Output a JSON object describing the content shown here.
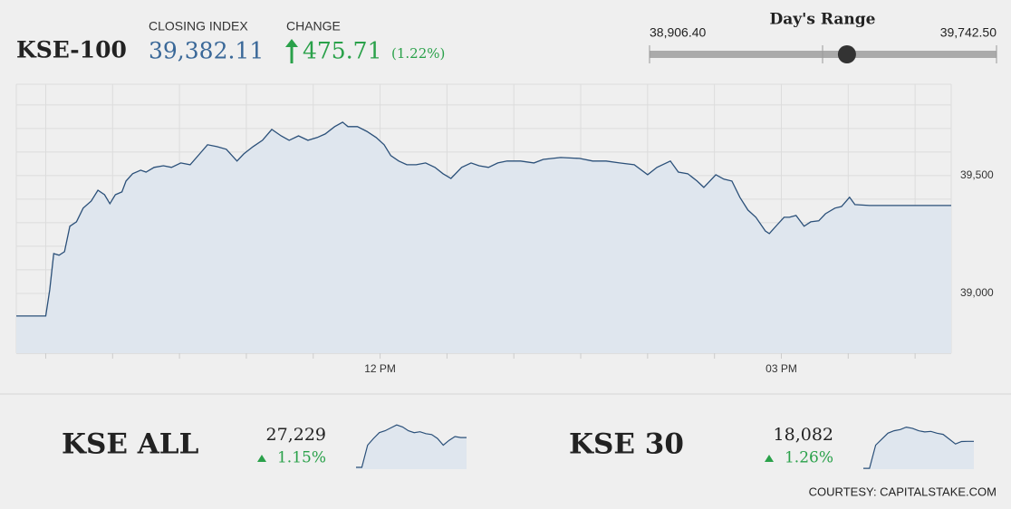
{
  "header": {
    "index_name": "KSE-100",
    "closing_label": "CLOSING INDEX",
    "closing_index": {
      "value": 39382.11,
      "label": "39,382.11"
    },
    "change_label": "CHANGE",
    "change": {
      "value": 475.71,
      "label": "475.71"
    },
    "change_pct": {
      "value": 1.22,
      "label": "(1.22%)"
    }
  },
  "range": {
    "title": "Day's Range",
    "low": {
      "value": 38906.4,
      "label": "38,906.40"
    },
    "high": {
      "value": 39742.5,
      "label": "39,742.50"
    }
  },
  "chart_data": [
    {
      "type": "area",
      "color": "#2b5079",
      "fill": "#dfe6ee",
      "x": [
        9.28,
        9.5,
        9.53,
        9.56,
        9.6,
        9.64,
        9.68,
        9.73,
        9.78,
        9.84,
        9.89,
        9.94,
        9.98,
        10.02,
        10.07,
        10.1,
        10.15,
        10.21,
        10.25,
        10.31,
        10.38,
        10.44,
        10.51,
        10.58,
        10.65,
        10.71,
        10.78,
        10.85,
        10.93,
        10.98,
        11.05,
        11.12,
        11.19,
        11.26,
        11.32,
        11.39,
        11.46,
        11.53,
        11.59,
        11.66,
        11.72,
        11.76,
        11.83,
        11.9,
        11.97,
        12.03,
        12.08,
        12.14,
        12.2,
        12.27,
        12.34,
        12.41,
        12.47,
        12.53,
        12.61,
        12.68,
        12.74,
        12.81,
        12.88,
        12.95,
        13.05,
        13.15,
        13.22,
        13.35,
        13.49,
        13.59,
        13.69,
        13.79,
        13.9,
        14.0,
        14.07,
        14.17,
        14.23,
        14.3,
        14.37,
        14.42,
        14.51,
        14.57,
        14.63,
        14.69,
        14.75,
        14.81,
        14.88,
        14.91,
        14.97,
        15.02,
        15.06,
        15.11,
        15.17,
        15.22,
        15.28,
        15.33,
        15.4,
        15.45,
        15.51,
        15.55,
        15.66,
        16.27
      ],
      "values": [
        38904,
        38904,
        39015,
        39169,
        39162,
        39177,
        39285,
        39304,
        39362,
        39392,
        39438,
        39419,
        39381,
        39419,
        39431,
        39477,
        39508,
        39523,
        39515,
        39535,
        39542,
        39535,
        39554,
        39546,
        39592,
        39631,
        39623,
        39612,
        39562,
        39592,
        39623,
        39650,
        39696,
        39669,
        39650,
        39669,
        39650,
        39662,
        39677,
        39708,
        39727,
        39708,
        39708,
        39688,
        39662,
        39631,
        39585,
        39562,
        39546,
        39546,
        39554,
        39535,
        39508,
        39488,
        39535,
        39554,
        39542,
        39535,
        39554,
        39562,
        39562,
        39554,
        39569,
        39577,
        39573,
        39562,
        39562,
        39554,
        39546,
        39504,
        39535,
        39562,
        39515,
        39508,
        39477,
        39450,
        39504,
        39485,
        39477,
        39408,
        39354,
        39323,
        39265,
        39254,
        39292,
        39323,
        39323,
        39331,
        39285,
        39304,
        39308,
        39338,
        39362,
        39369,
        39408,
        39377,
        39373,
        39373
      ],
      "xlim": [
        9.28,
        16.27
      ],
      "ylim": [
        38746,
        39888
      ],
      "xticks": [
        {
          "value": 12,
          "label": "12 PM"
        },
        {
          "value": 15,
          "label": "03 PM"
        }
      ],
      "xticks_minor": [
        9.5,
        10,
        10.5,
        11,
        11.5,
        12,
        12.5,
        13,
        13.5,
        14,
        14.5,
        15,
        15.5,
        16
      ],
      "yticks": [
        {
          "value": 39000,
          "label": "39,000"
        },
        {
          "value": 39500,
          "label": "39,500"
        }
      ],
      "yticks_minor": [
        38800,
        38900,
        39000,
        39100,
        39200,
        39300,
        39400,
        39500,
        39600,
        39700,
        39800
      ],
      "grid": true
    },
    {
      "type": "sparkline",
      "title": "KSE ALL",
      "color": "#2b5079",
      "fill": "#dfe6ee",
      "last": {
        "value": 27229,
        "label": "27,229"
      },
      "change_pct": {
        "value": 1.15,
        "label": "1.15%"
      },
      "values": [
        26919,
        26919,
        27150,
        27220,
        27280,
        27300,
        27330,
        27360,
        27340,
        27300,
        27280,
        27290,
        27270,
        27260,
        27220,
        27150,
        27200,
        27240,
        27229,
        27229
      ],
      "ylim": [
        26900,
        27400
      ]
    },
    {
      "type": "sparkline",
      "title": "KSE 30",
      "color": "#2b5079",
      "fill": "#dfe6ee",
      "last": {
        "value": 18082,
        "label": "18,082"
      },
      "change_pct": {
        "value": 1.26,
        "label": "1.26%"
      },
      "values": [
        17857,
        17857,
        18050,
        18100,
        18150,
        18170,
        18180,
        18200,
        18190,
        18170,
        18160,
        18165,
        18150,
        18140,
        18100,
        18060,
        18080,
        18082,
        18082
      ],
      "ylim": [
        17850,
        18250
      ]
    }
  ],
  "footer": "COURTESY: CAPITALSTAKE.COM"
}
